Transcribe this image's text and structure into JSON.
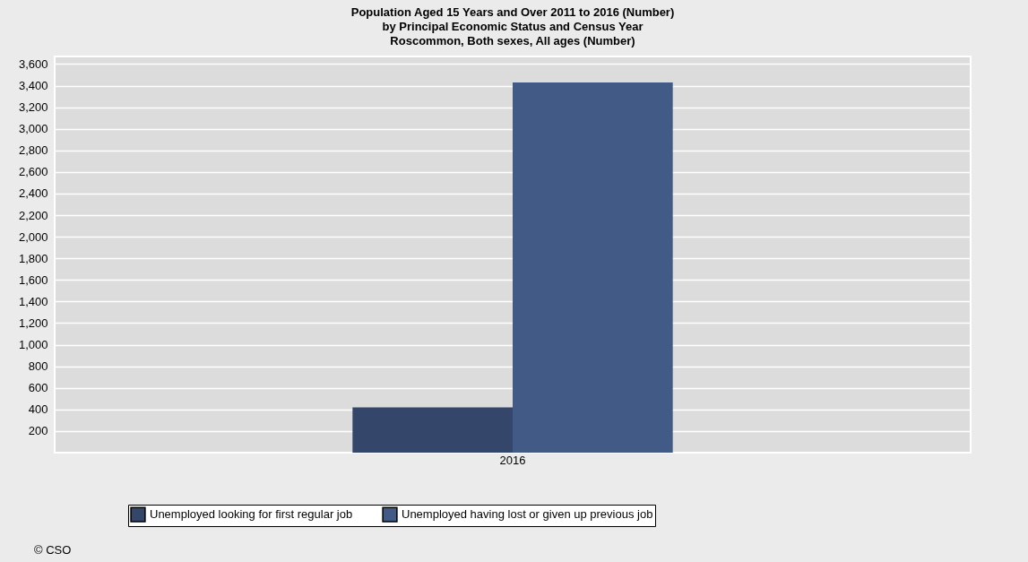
{
  "chart_data": {
    "type": "bar",
    "title": "Population Aged 15 Years and Over 2011 to 2016 (Number)\nby Principal Economic Status and Census Year\nRoscommon, Both sexes, All ages (Number)",
    "categories": [
      "2016"
    ],
    "series": [
      {
        "name": "Unemployed looking for first regular job",
        "color": "#34466a",
        "values": [
          420
        ]
      },
      {
        "name": "Unemployed having lost or given up previous job",
        "color": "#415a86",
        "values": [
          3430
        ]
      }
    ],
    "ylim": [
      0,
      3670
    ],
    "yticks": [
      200,
      400,
      600,
      800,
      {
        "value": 1000,
        "label": "1,000"
      },
      {
        "value": 1200,
        "label": "1,200"
      },
      {
        "value": 1400,
        "label": "1,400"
      },
      {
        "value": 1600,
        "label": "1,600"
      },
      {
        "value": 1800,
        "label": "1,800"
      },
      {
        "value": 2000,
        "label": "2,000"
      },
      {
        "value": 2200,
        "label": "2,200"
      },
      {
        "value": 2400,
        "label": "2,400"
      },
      {
        "value": 2600,
        "label": "2,600"
      },
      {
        "value": 2800,
        "label": "2,800"
      },
      {
        "value": 3000,
        "label": "3,000"
      },
      {
        "value": 3200,
        "label": "3,200"
      },
      {
        "value": 3400,
        "label": "3,400"
      },
      {
        "value": 3600,
        "label": "3,600"
      }
    ],
    "grid": "y",
    "legend": "bottom",
    "annotations": [
      "© CSO"
    ]
  }
}
